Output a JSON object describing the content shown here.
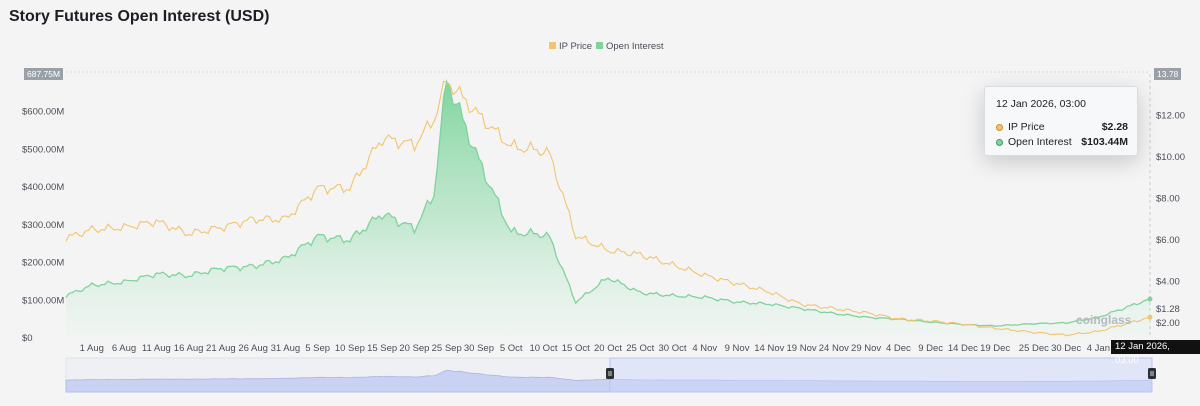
{
  "title": "Story Futures Open Interest (USD)",
  "chart_data": {
    "type": "line",
    "title": "Story Futures Open Interest (USD)",
    "legend_position": "top-center",
    "legend": [
      "IP Price",
      "Open Interest"
    ],
    "colors": {
      "ip_price": "#f2c46d",
      "open_interest": "#7fd39b",
      "open_interest_fill": "#8fd9a8"
    },
    "y_left": {
      "ticks": [
        "$0",
        "$100.00M",
        "$200.00M",
        "$300.00M",
        "$400.00M",
        "$500.00M",
        "$600.00M"
      ],
      "range": [
        0,
        700
      ],
      "unit": "M USD",
      "max_flag": "687.75M"
    },
    "y_right": {
      "ticks": [
        "$2.00",
        "$4.00",
        "$6.00",
        "$8.00",
        "$10.00",
        "$12.00"
      ],
      "range": [
        1.28,
        14
      ],
      "min_flag": "$1.28",
      "max_flag": "13.78"
    },
    "x_ticks": [
      "1 Aug",
      "6 Aug",
      "11 Aug",
      "16 Aug",
      "21 Aug",
      "26 Aug",
      "31 Aug",
      "5 Sep",
      "10 Sep",
      "15 Sep",
      "20 Sep",
      "25 Sep",
      "30 Sep",
      "5 Oct",
      "10 Oct",
      "15 Oct",
      "20 Oct",
      "25 Oct",
      "30 Oct",
      "4 Nov",
      "9 Nov",
      "14 Nov",
      "19 Nov",
      "24 Nov",
      "29 Nov",
      "4 Dec",
      "9 Dec",
      "14 Dec",
      "19 Dec",
      "25 Dec",
      "30 Dec",
      "4 Jan"
    ],
    "x_dates": [
      "2025-07-28",
      "2025-08-01",
      "2025-08-06",
      "2025-08-11",
      "2025-08-16",
      "2025-08-21",
      "2025-08-26",
      "2025-08-31",
      "2025-09-05",
      "2025-09-10",
      "2025-09-15",
      "2025-09-20",
      "2025-09-23",
      "2025-09-25",
      "2025-09-30",
      "2025-10-05",
      "2025-10-10",
      "2025-10-11",
      "2025-10-15",
      "2025-10-20",
      "2025-10-25",
      "2025-10-30",
      "2025-11-04",
      "2025-11-09",
      "2025-11-14",
      "2025-11-19",
      "2025-11-24",
      "2025-11-29",
      "2025-12-04",
      "2025-12-09",
      "2025-12-14",
      "2025-12-19",
      "2025-12-25",
      "2025-12-30",
      "2026-01-04",
      "2026-01-12"
    ],
    "series": [
      {
        "name": "Open Interest",
        "axis": "left",
        "values": [
          112,
          140,
          148,
          170,
          165,
          185,
          190,
          210,
          270,
          260,
          330,
          290,
          380,
          687,
          470,
          280,
          275,
          265,
          95,
          160,
          120,
          112,
          108,
          95,
          90,
          78,
          65,
          55,
          50,
          42,
          36,
          32,
          38,
          40,
          55,
          103.44
        ]
      },
      {
        "name": "IP Price",
        "axis": "right",
        "values": [
          6.1,
          6.5,
          6.6,
          6.9,
          6.3,
          6.6,
          7.0,
          7.0,
          8.5,
          8.5,
          10.9,
          10.6,
          11.8,
          13.7,
          12.0,
          10.5,
          10.3,
          10.1,
          6.2,
          5.5,
          5.3,
          4.8,
          4.3,
          3.9,
          3.5,
          2.9,
          2.7,
          2.5,
          2.2,
          2.1,
          1.95,
          1.75,
          1.55,
          1.42,
          1.6,
          2.28
        ]
      }
    ],
    "tooltip": {
      "date": "12 Jan 2026, 03:00",
      "ip_price_label": "IP Price",
      "ip_price_value": "$2.28",
      "oi_label": "Open Interest",
      "oi_value": "$103.44M"
    },
    "x_flag": "12 Jan 2026, 03:00",
    "watermark": "coinglass"
  }
}
